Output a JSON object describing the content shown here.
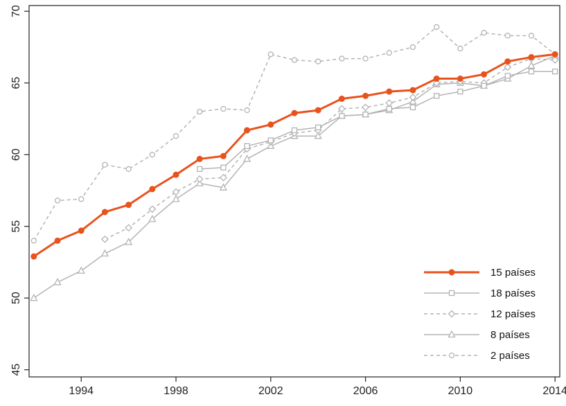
{
  "chart_data": {
    "type": "line",
    "title": "",
    "xlabel": "",
    "ylabel": "",
    "xlim": [
      1991.8,
      2014.2
    ],
    "ylim": [
      44.5,
      70.4
    ],
    "x_ticks": [
      "1994",
      "1998",
      "2002",
      "2006",
      "2010",
      "2014"
    ],
    "y_ticks": [
      "45",
      "50",
      "55",
      "60",
      "65",
      "70"
    ],
    "grid": false,
    "legend_position": "bottom-right",
    "series": [
      {
        "name": "2 países",
        "color": "#b3b3b3",
        "line_style": "dashed",
        "marker": "circle",
        "x": [
          1992,
          1993,
          1994,
          1995,
          1996,
          1997,
          1998,
          1999,
          2000,
          2001,
          2002,
          2003,
          2004,
          2005,
          2006,
          2007,
          2008,
          2009,
          2010,
          2011,
          2012,
          2013,
          2014
        ],
        "values": [
          54.0,
          56.8,
          56.9,
          59.3,
          59.0,
          60.0,
          61.3,
          63.0,
          63.2,
          63.1,
          67.0,
          66.6,
          66.5,
          66.7,
          66.7,
          67.1,
          67.5,
          68.9,
          67.4,
          68.5,
          68.3,
          68.3,
          67.0
        ]
      },
      {
        "name": "8 países",
        "color": "#b3b3b3",
        "line_style": "solid",
        "marker": "triangle",
        "x": [
          1992,
          1993,
          1994,
          1995,
          1996,
          1997,
          1998,
          1999,
          2000,
          2001,
          2002,
          2003,
          2004,
          2005,
          2006,
          2007,
          2008,
          2009,
          2010,
          2011,
          2012,
          2013,
          2014
        ],
        "values": [
          50.0,
          51.1,
          51.9,
          53.1,
          53.9,
          55.5,
          56.9,
          58.0,
          57.7,
          59.7,
          60.6,
          61.3,
          61.3,
          62.7,
          62.8,
          63.1,
          63.7,
          64.9,
          65.0,
          64.8,
          65.3,
          66.2,
          66.9
        ]
      },
      {
        "name": "12 países",
        "color": "#b3b3b3",
        "line_style": "dashed",
        "marker": "diamond",
        "x": [
          1995,
          1996,
          1997,
          1998,
          1999,
          2000,
          2001,
          2002,
          2003,
          2004,
          2005,
          2006,
          2007,
          2008,
          2009,
          2010,
          2011,
          2012,
          2013,
          2014
        ],
        "values": [
          54.1,
          54.9,
          56.2,
          57.4,
          58.3,
          58.4,
          60.4,
          60.9,
          61.5,
          61.7,
          63.2,
          63.3,
          63.6,
          64.0,
          65.0,
          65.1,
          65.0,
          66.1,
          66.7,
          66.6
        ]
      },
      {
        "name": "18 países",
        "color": "#b3b3b3",
        "line_style": "solid",
        "marker": "square",
        "x": [
          1999,
          2000,
          2001,
          2002,
          2003,
          2004,
          2005,
          2006,
          2007,
          2008,
          2009,
          2010,
          2011,
          2012,
          2013,
          2014
        ],
        "values": [
          59.0,
          59.1,
          60.6,
          61.0,
          61.7,
          61.9,
          62.7,
          62.8,
          63.2,
          63.3,
          64.1,
          64.4,
          64.8,
          65.5,
          65.8,
          65.8
        ]
      },
      {
        "name": "15 países",
        "color": "#e8521c",
        "line_style": "solid",
        "marker": "filled-circle",
        "x": [
          1992,
          1993,
          1994,
          1995,
          1996,
          1997,
          1998,
          1999,
          2000,
          2001,
          2002,
          2003,
          2004,
          2005,
          2006,
          2007,
          2008,
          2009,
          2010,
          2011,
          2012,
          2013,
          2014
        ],
        "values": [
          52.9,
          54.0,
          54.7,
          56.0,
          56.5,
          57.6,
          58.6,
          59.7,
          59.9,
          61.7,
          62.1,
          62.9,
          63.1,
          63.9,
          64.1,
          64.4,
          64.5,
          65.3,
          65.3,
          65.6,
          66.5,
          66.8,
          67.0
        ]
      }
    ],
    "legend": [
      {
        "label": "15 países",
        "series": "15 países"
      },
      {
        "label": "18 países",
        "series": "18 países"
      },
      {
        "label": "12 países",
        "series": "12 países"
      },
      {
        "label": "8 países",
        "series": "8 países"
      },
      {
        "label": "2 países",
        "series": "2 países"
      }
    ]
  }
}
